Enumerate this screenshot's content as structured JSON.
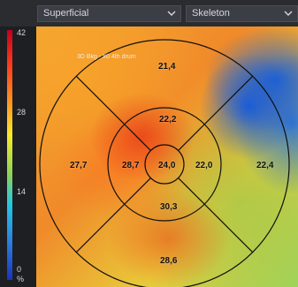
{
  "toolbar": {
    "layer_select_value": "Superficial",
    "overlay_select_value": "Skeleton"
  },
  "scale": {
    "ticks": [
      "42",
      "28",
      "14",
      "0",
      "%"
    ]
  },
  "map": {
    "info_text": "3D Bkg - #0 4th drum",
    "sectors": {
      "center": "24,0",
      "inner_superior": "22,2",
      "inner_temporal": "28,7",
      "inner_nasal": "22,0",
      "inner_inferior": "30,3",
      "outer_superior": "21,4",
      "outer_temporal": "27,7",
      "outer_nasal": "22,4",
      "outer_inferior": "28,6"
    },
    "colors": {
      "grid_line": "#101010",
      "vessel_region": "#1a5fd8"
    }
  }
}
